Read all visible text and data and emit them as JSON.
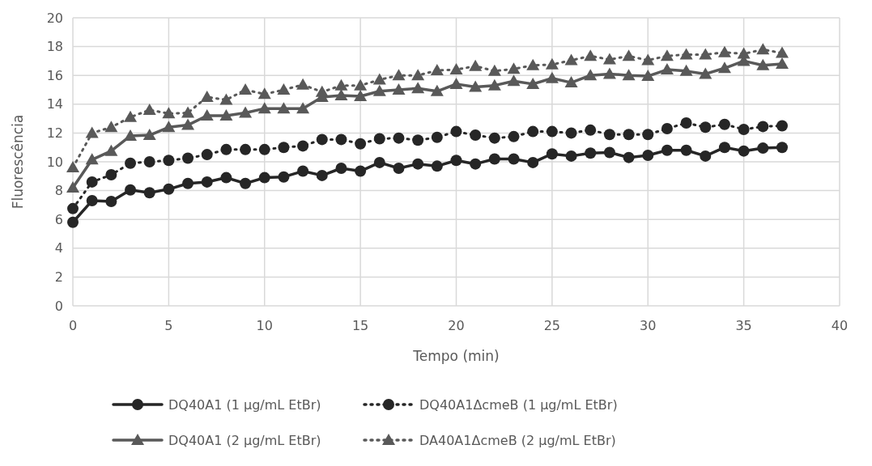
{
  "chart_data": {
    "type": "line",
    "xlabel": "Tempo (min)",
    "ylabel": "Fluorescência",
    "x": [
      0,
      1,
      2,
      3,
      4,
      5,
      6,
      7,
      8,
      9,
      10,
      11,
      12,
      13,
      14,
      15,
      16,
      17,
      18,
      19,
      20,
      21,
      22,
      23,
      24,
      25,
      26,
      27,
      28,
      29,
      30,
      31,
      32,
      33,
      34,
      35,
      36,
      37
    ],
    "xlim": [
      0,
      40
    ],
    "xticks": [
      0,
      5,
      10,
      15,
      20,
      25,
      30,
      35,
      40
    ],
    "ylim": [
      0,
      20
    ],
    "yticks": [
      0,
      2,
      4,
      6,
      8,
      10,
      12,
      14,
      16,
      18,
      20
    ],
    "grid": true,
    "legend": "bottom",
    "series": [
      {
        "name": "DQ40A1 (1 µg/mL EtBr)",
        "color": "#262626",
        "marker": "circle",
        "line_style": "solid",
        "values": [
          5.8,
          7.3,
          7.25,
          8.05,
          7.85,
          8.1,
          8.5,
          8.6,
          8.9,
          8.5,
          8.9,
          8.95,
          9.35,
          9.05,
          9.55,
          9.35,
          9.95,
          9.55,
          9.85,
          9.7,
          10.1,
          9.85,
          10.2,
          10.2,
          9.95,
          10.55,
          10.4,
          10.6,
          10.65,
          10.3,
          10.45,
          10.8,
          10.8,
          10.4,
          11.0,
          10.75,
          10.95,
          11.0
        ]
      },
      {
        "name": "DQ40A1ΔcmeB (1 µg/mL EtBr)",
        "color": "#262626",
        "marker": "circle",
        "line_style": "dotted",
        "values": [
          6.75,
          8.6,
          9.1,
          9.9,
          10.0,
          10.1,
          10.25,
          10.5,
          10.85,
          10.85,
          10.85,
          11.0,
          11.1,
          11.55,
          11.55,
          11.25,
          11.6,
          11.65,
          11.5,
          11.7,
          12.1,
          11.85,
          11.65,
          11.75,
          12.1,
          12.1,
          12.0,
          12.2,
          11.9,
          11.9,
          11.9,
          12.3,
          12.7,
          12.4,
          12.6,
          12.25,
          12.45,
          12.5
        ]
      },
      {
        "name": "DQ40A1 (2 µg/mL EtBr)",
        "color": "#595959",
        "marker": "triangle",
        "line_style": "solid",
        "values": [
          8.2,
          10.15,
          10.75,
          11.8,
          11.85,
          12.4,
          12.55,
          13.2,
          13.2,
          13.4,
          13.7,
          13.7,
          13.7,
          14.5,
          14.6,
          14.55,
          14.9,
          15.0,
          15.1,
          14.9,
          15.4,
          15.2,
          15.3,
          15.6,
          15.4,
          15.8,
          15.5,
          16.0,
          16.1,
          16.0,
          15.95,
          16.4,
          16.3,
          16.1,
          16.5,
          17.0,
          16.7,
          16.8
        ]
      },
      {
        "name": "DA40A1ΔcmeB (2 µg/mL EtBr)",
        "color": "#595959",
        "marker": "triangle",
        "line_style": "dotted",
        "values": [
          9.6,
          12.0,
          12.4,
          13.1,
          13.6,
          13.35,
          13.4,
          14.5,
          14.3,
          15.0,
          14.7,
          15.0,
          15.35,
          14.85,
          15.3,
          15.3,
          15.7,
          16.0,
          16.0,
          16.35,
          16.4,
          16.65,
          16.3,
          16.45,
          16.7,
          16.75,
          17.05,
          17.35,
          17.1,
          17.35,
          17.05,
          17.35,
          17.45,
          17.45,
          17.6,
          17.5,
          17.8,
          17.55
        ]
      }
    ]
  }
}
